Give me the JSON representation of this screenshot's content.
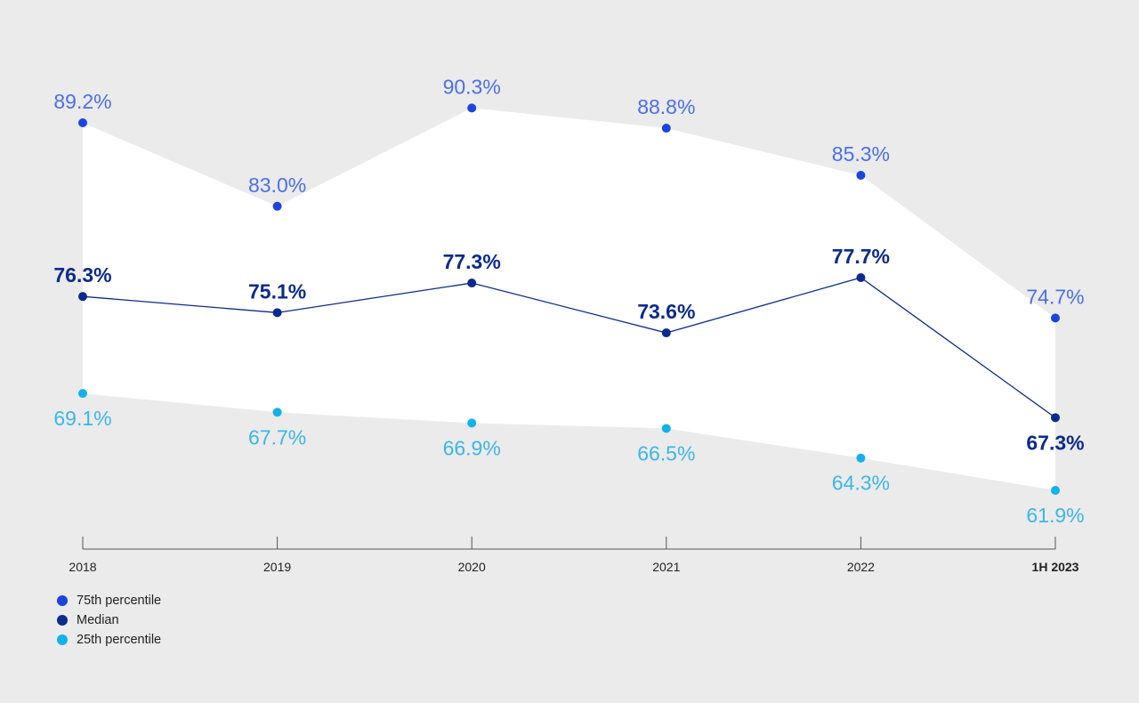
{
  "chart_data": {
    "type": "line",
    "categories": [
      "2018",
      "2019",
      "2020",
      "2021",
      "2022",
      "1H 2023"
    ],
    "series": [
      {
        "name": "75th percentile",
        "values": [
          89.2,
          83.0,
          90.3,
          88.8,
          85.3,
          74.7
        ],
        "labels": [
          "89.2%",
          "83.0%",
          "90.3%",
          "88.8%",
          "85.3%",
          "74.7%"
        ],
        "color": "#1a45e0",
        "label_color": "#4c6fea"
      },
      {
        "name": "Median",
        "values": [
          76.3,
          75.1,
          77.3,
          73.6,
          77.7,
          67.3
        ],
        "labels": [
          "76.3%",
          "75.1%",
          "77.3%",
          "73.6%",
          "77.7%",
          "67.3%"
        ],
        "color": "#0c2b8c",
        "label_color": "#0c2b8c"
      },
      {
        "name": "25th percentile",
        "values": [
          69.1,
          67.7,
          66.9,
          66.5,
          64.3,
          61.9
        ],
        "labels": [
          "69.1%",
          "67.7%",
          "66.9%",
          "66.5%",
          "64.3%",
          "61.9%"
        ],
        "color": "#12b1ea",
        "label_color": "#3db6e8"
      }
    ],
    "band_fill": "#ffffff",
    "background": "#ebebeb",
    "legend": "bottom-left",
    "grid": false,
    "title": "",
    "xlabel": "",
    "ylabel": ""
  }
}
